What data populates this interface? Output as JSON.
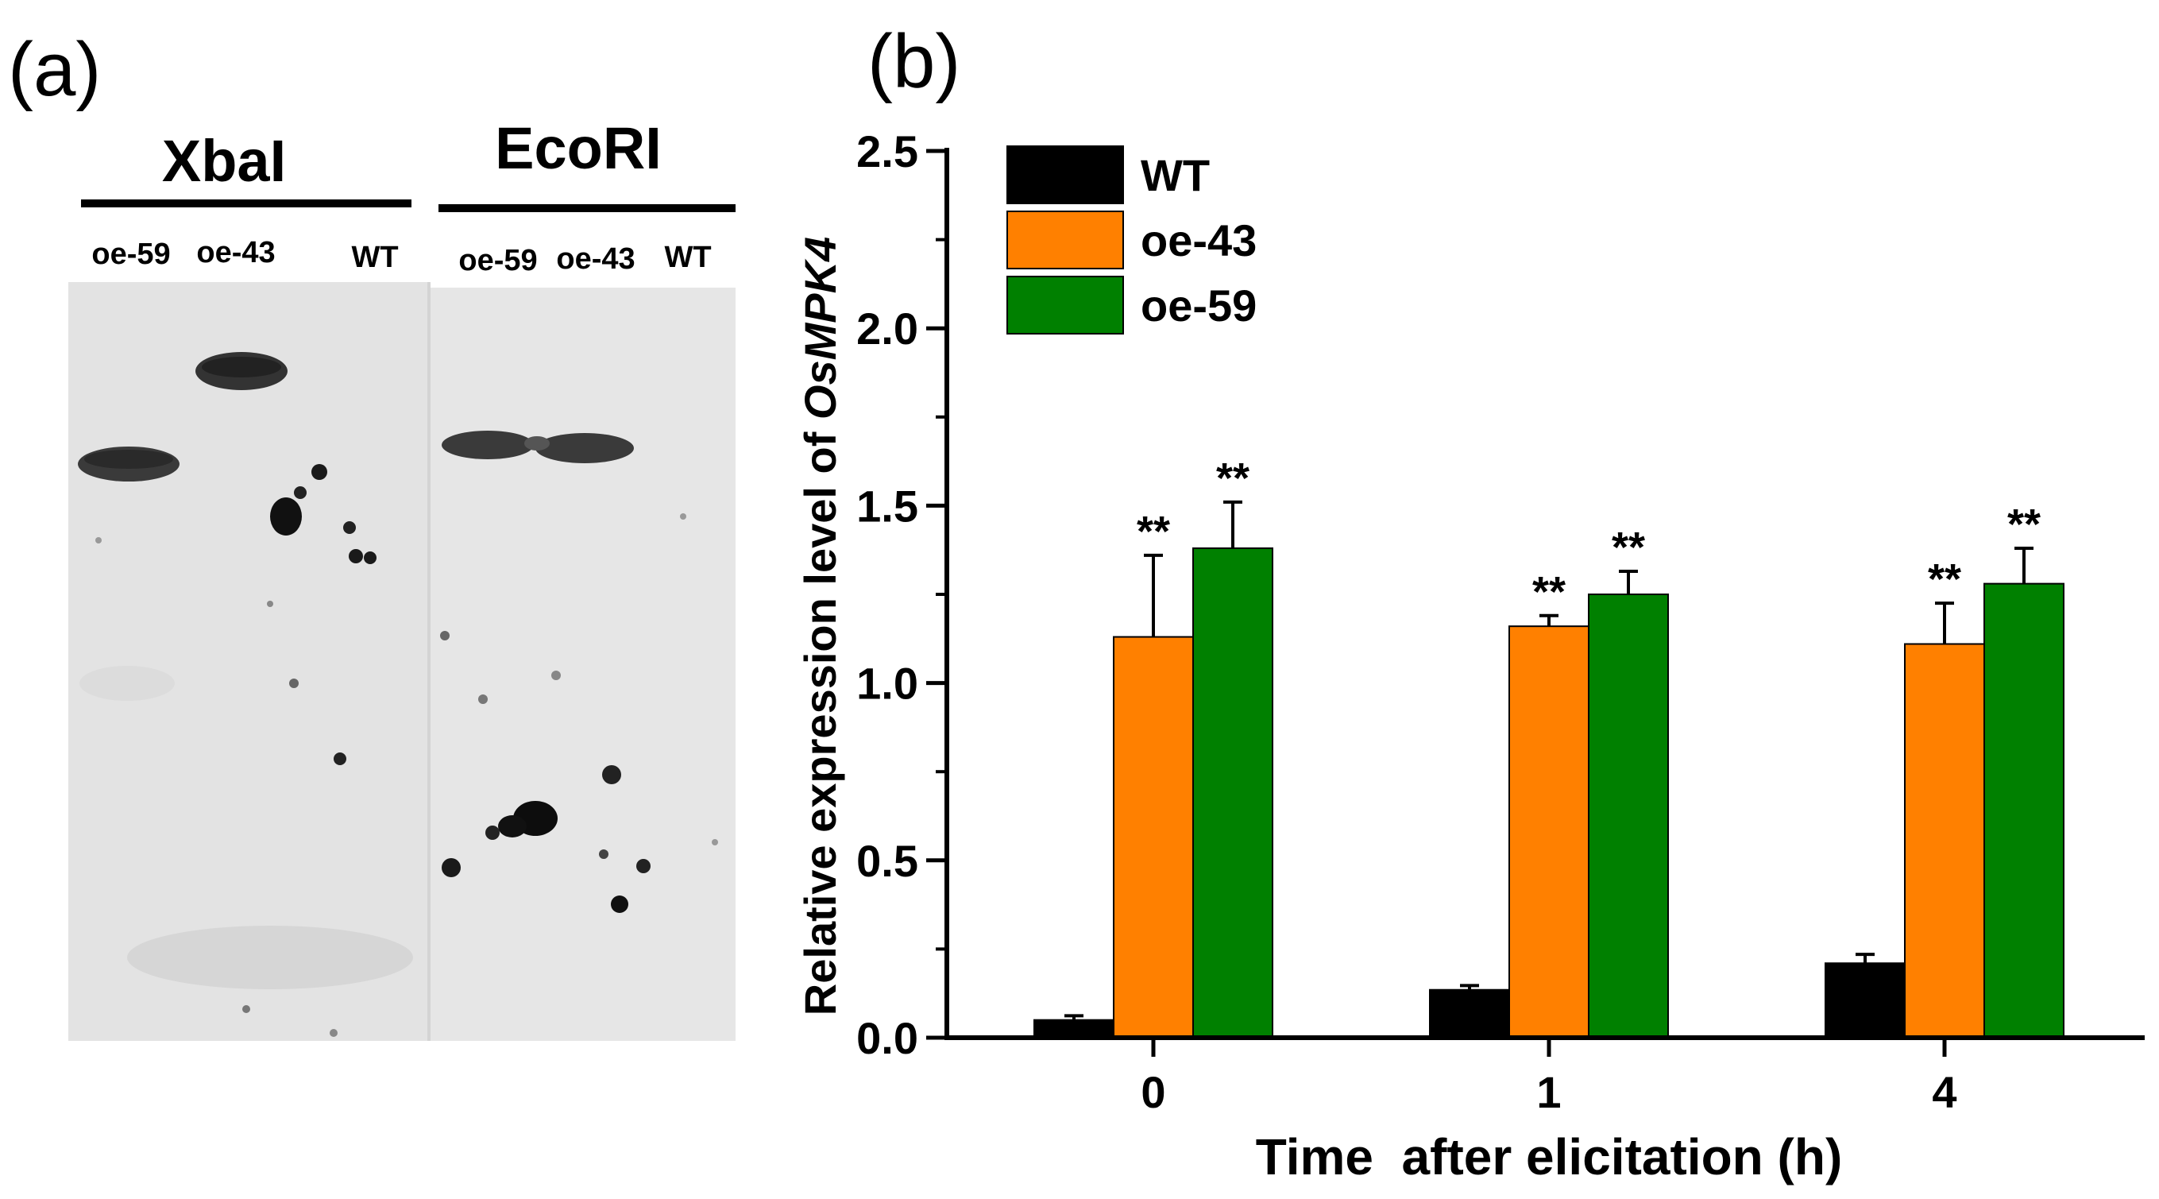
{
  "panel_a": {
    "label": "(a)",
    "enzymes": [
      {
        "name": "XbaI",
        "lanes": [
          "oe-59",
          "oe-43",
          "WT"
        ]
      },
      {
        "name": "EcoRI",
        "lanes": [
          "oe-59",
          "oe-43",
          "WT"
        ]
      }
    ]
  },
  "panel_b": {
    "label": "(b)"
  },
  "chart_data": {
    "type": "bar",
    "title": "",
    "xlabel": "Time  after elicitation (h)",
    "ylabel_prefix": "Relative expression level of ",
    "ylabel_gene": "OsMPK4",
    "categories": [
      "0",
      "1",
      "4"
    ],
    "ylim": [
      0,
      2.5
    ],
    "yticks": [
      "0.0",
      "0.5",
      "1.0",
      "1.5",
      "2.0",
      "2.5"
    ],
    "grid": false,
    "legend_position": "top-left",
    "series": [
      {
        "name": "WT",
        "color": "#000000",
        "values": [
          0.05,
          0.135,
          0.21
        ],
        "errors": [
          0.012,
          0.012,
          0.025
        ],
        "significance": [
          "",
          "",
          ""
        ]
      },
      {
        "name": "oe-43",
        "color": "#ff8000",
        "values": [
          1.13,
          1.16,
          1.11
        ],
        "errors": [
          0.23,
          0.03,
          0.115
        ],
        "significance": [
          "**",
          "**",
          "**"
        ]
      },
      {
        "name": "oe-59",
        "color": "#008000",
        "values": [
          1.38,
          1.25,
          1.28
        ],
        "errors": [
          0.13,
          0.065,
          0.1
        ],
        "significance": [
          "**",
          "**",
          "**"
        ]
      }
    ]
  }
}
